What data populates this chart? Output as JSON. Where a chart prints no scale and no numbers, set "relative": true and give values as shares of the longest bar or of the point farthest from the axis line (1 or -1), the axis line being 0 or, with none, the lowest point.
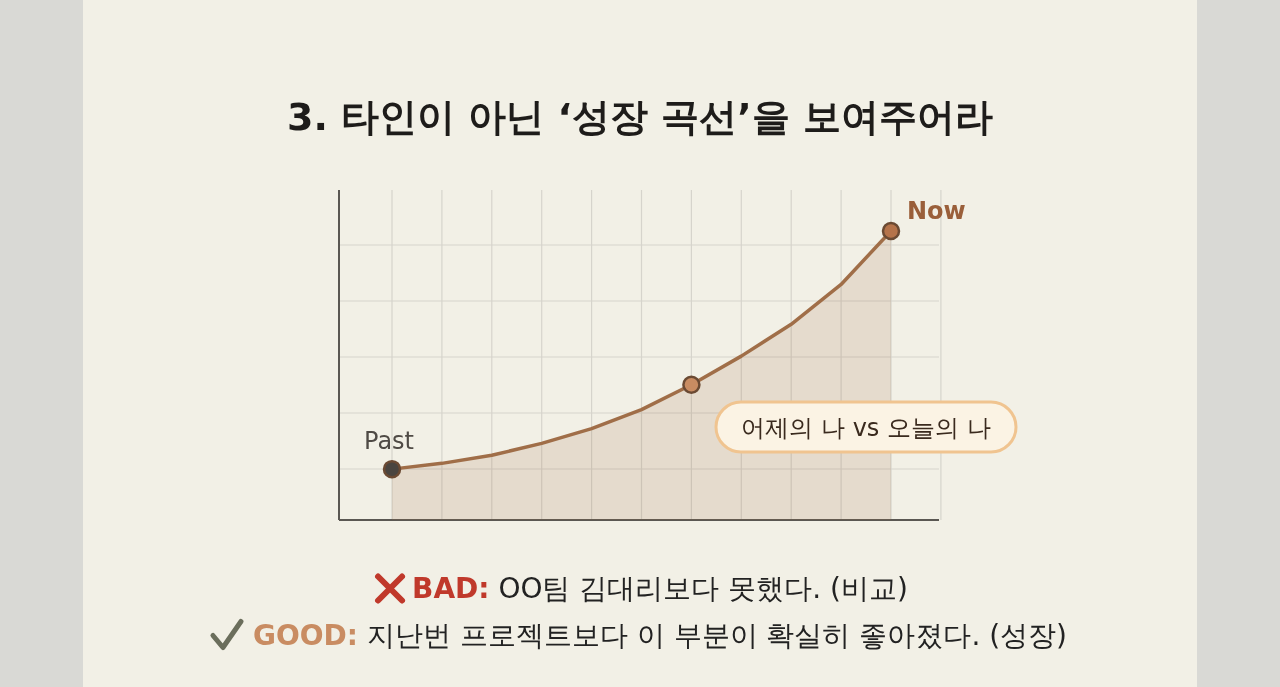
{
  "chart_data": {
    "type": "area",
    "title": "3. 타인이 아닌 ‘성장 곡선’을 보여주어라",
    "relative": true,
    "grid": true,
    "categories": [
      null,
      null,
      null,
      null,
      null,
      null,
      null,
      null,
      null,
      null,
      null
    ],
    "series": [
      {
        "color": "#a06e48",
        "values": [
          0.176,
          0.196,
          0.224,
          0.265,
          0.316,
          0.382,
          0.468,
          0.567,
          0.677,
          0.815,
          1
        ]
      }
    ],
    "annotations": [
      "Past",
      "Now",
      "어제의 나 vs 오늘의 나",
      "BAD: OO팀 김대리보다 못했다. (비교)",
      "GOOD: 지난번 프로젝트보다 이 부분이 확실히 좋아졌다. (성장)"
    ]
  }
}
